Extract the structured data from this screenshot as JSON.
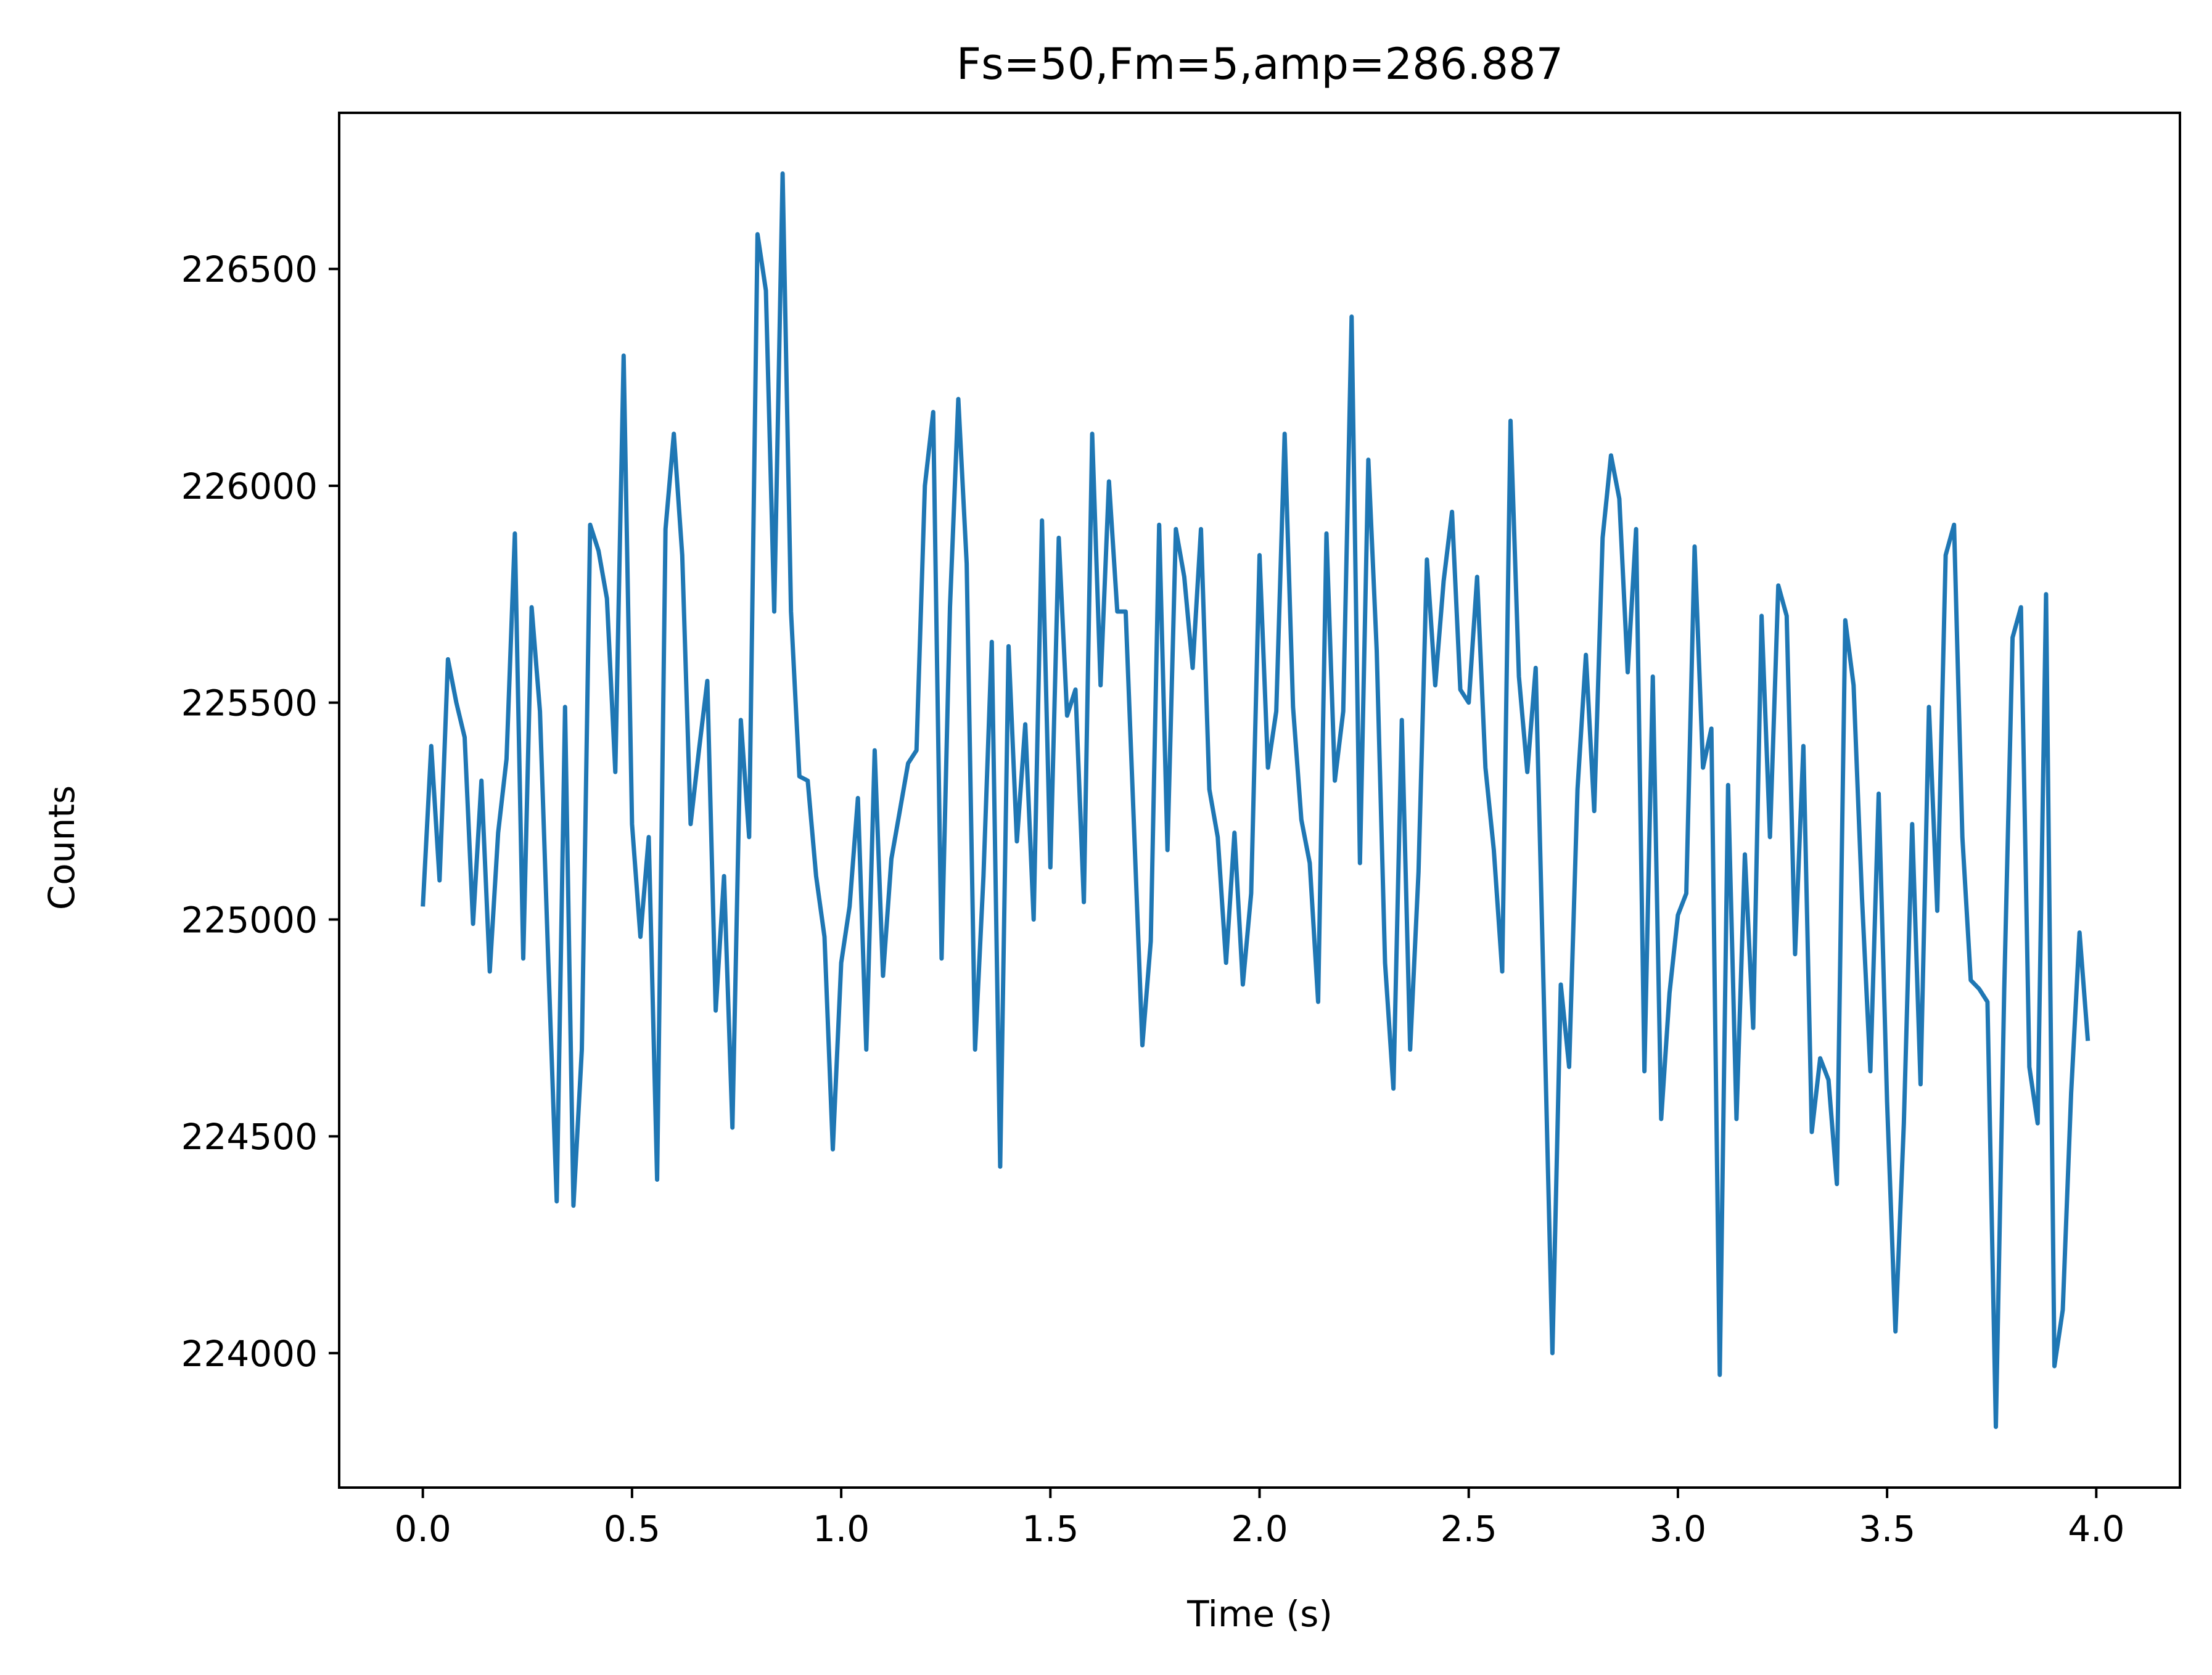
{
  "chart_data": {
    "type": "line",
    "title": "Fs=50,Fm=5,amp=286.887",
    "xlabel": "Time (s)",
    "ylabel": "Counts",
    "xlim": [
      -0.2,
      4.2
    ],
    "ylim": [
      223690,
      226860
    ],
    "xticks": [
      0.0,
      0.5,
      1.0,
      1.5,
      2.0,
      2.5,
      3.0,
      3.5,
      4.0
    ],
    "xtick_labels": [
      "0.0",
      "0.5",
      "1.0",
      "1.5",
      "2.0",
      "2.5",
      "3.0",
      "3.5",
      "4.0"
    ],
    "yticks": [
      224000,
      224500,
      225000,
      225500,
      226000,
      226500
    ],
    "ytick_labels": [
      "224000",
      "224500",
      "225000",
      "225500",
      "226000",
      "226500"
    ],
    "grid": false,
    "series": [
      {
        "color": "#1f77b4",
        "x": [
          0.0,
          0.02,
          0.04,
          0.06,
          0.08,
          0.1,
          0.12,
          0.14,
          0.16,
          0.18,
          0.2,
          0.22,
          0.24,
          0.26,
          0.28,
          0.3,
          0.32,
          0.34,
          0.36,
          0.38,
          0.4,
          0.42,
          0.44,
          0.46,
          0.48,
          0.5,
          0.52,
          0.54,
          0.56,
          0.58,
          0.6,
          0.62,
          0.64,
          0.66,
          0.68,
          0.7,
          0.72,
          0.74,
          0.76,
          0.78,
          0.8,
          0.82,
          0.84,
          0.86,
          0.88,
          0.9,
          0.92,
          0.94,
          0.96,
          0.98,
          1.0,
          1.02,
          1.04,
          1.06,
          1.08,
          1.1,
          1.12,
          1.14,
          1.16,
          1.18,
          1.2,
          1.22,
          1.24,
          1.26,
          1.28,
          1.3,
          1.32,
          1.34,
          1.36,
          1.38,
          1.4,
          1.42,
          1.44,
          1.46,
          1.48,
          1.5,
          1.52,
          1.54,
          1.56,
          1.58,
          1.6,
          1.62,
          1.64,
          1.66,
          1.68,
          1.7,
          1.72,
          1.74,
          1.76,
          1.78,
          1.8,
          1.82,
          1.84,
          1.86,
          1.88,
          1.9,
          1.92,
          1.94,
          1.96,
          1.98,
          2.0,
          2.02,
          2.04,
          2.06,
          2.08,
          2.1,
          2.12,
          2.14,
          2.16,
          2.18,
          2.2,
          2.22,
          2.24,
          2.26,
          2.28,
          2.3,
          2.32,
          2.34,
          2.36,
          2.38,
          2.4,
          2.42,
          2.44,
          2.46,
          2.48,
          2.5,
          2.52,
          2.54,
          2.56,
          2.58,
          2.6,
          2.62,
          2.64,
          2.66,
          2.68,
          2.7,
          2.72,
          2.74,
          2.76,
          2.78,
          2.8,
          2.82,
          2.84,
          2.86,
          2.88,
          2.9,
          2.92,
          2.94,
          2.96,
          2.98,
          3.0,
          3.02,
          3.04,
          3.06,
          3.08,
          3.1,
          3.12,
          3.14,
          3.16,
          3.18,
          3.2,
          3.22,
          3.24,
          3.26,
          3.28,
          3.3,
          3.32,
          3.34,
          3.36,
          3.38,
          3.4,
          3.42,
          3.44,
          3.46,
          3.48,
          3.5,
          3.52,
          3.54,
          3.56,
          3.58,
          3.6,
          3.62,
          3.64,
          3.66,
          3.68,
          3.7,
          3.72,
          3.74,
          3.76,
          3.78,
          3.8,
          3.82,
          3.84,
          3.86,
          3.88,
          3.9,
          3.92,
          3.94,
          3.96,
          3.98
        ],
        "values": [
          225030,
          225400,
          225090,
          225600,
          225500,
          225420,
          224990,
          225320,
          224880,
          225200,
          225370,
          225890,
          224910,
          225720,
          225480,
          224900,
          224350,
          225490,
          224340,
          224700,
          225910,
          225850,
          225740,
          225340,
          226300,
          225220,
          224960,
          225190,
          224400,
          225900,
          226120,
          225840,
          225220,
          225390,
          225550,
          224790,
          225100,
          224520,
          225460,
          225190,
          226580,
          226450,
          225710,
          226720,
          225710,
          225330,
          225320,
          225100,
          224960,
          224470,
          224900,
          225030,
          225280,
          224700,
          225390,
          224870,
          225140,
          225250,
          225360,
          225390,
          226000,
          226170,
          224910,
          225720,
          226200,
          225820,
          224700,
          225100,
          225640,
          224430,
          225630,
          225180,
          225450,
          225000,
          225920,
          225120,
          225880,
          225470,
          225530,
          225040,
          226120,
          225540,
          226010,
          225710,
          225710,
          225210,
          224710,
          224950,
          225910,
          225160,
          225900,
          225790,
          225580,
          225900,
          225300,
          225190,
          224900,
          225200,
          224850,
          225060,
          225840,
          225350,
          225480,
          226120,
          225490,
          225230,
          225130,
          224810,
          225890,
          225320,
          225480,
          226390,
          225130,
          226060,
          225620,
          224900,
          224610,
          225460,
          224700,
          225110,
          225830,
          225540,
          225780,
          225940,
          225530,
          225500,
          225790,
          225350,
          225160,
          224880,
          226150,
          225560,
          225340,
          225580,
          224800,
          224000,
          224850,
          224660,
          225300,
          225610,
          225250,
          225880,
          226070,
          225970,
          225570,
          225900,
          224650,
          225560,
          224540,
          224830,
          225010,
          225060,
          225860,
          225350,
          225440,
          223950,
          225310,
          224540,
          225150,
          224750,
          225700,
          225190,
          225770,
          225700,
          224920,
          225400,
          224510,
          224680,
          224630,
          224390,
          225690,
          225540,
          225050,
          224650,
          225290,
          224580,
          224050,
          224530,
          225220,
          224620,
          225490,
          225020,
          225840,
          225910,
          225190,
          224860,
          224840,
          224810,
          223830,
          224840,
          225650,
          225720,
          224660,
          224530,
          225750,
          223970,
          224100,
          224600,
          224970,
          224720
        ]
      }
    ]
  }
}
